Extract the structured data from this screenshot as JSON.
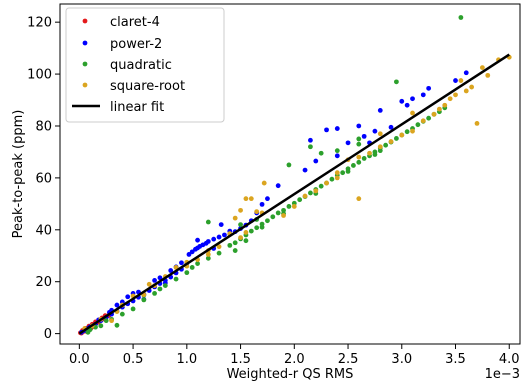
{
  "chart_data": {
    "type": "scatter",
    "xlabel": "Weighted-r QS RMS",
    "ylabel": "Peak-to-peak (ppm)",
    "x_offset_label": "1e−3",
    "x_scale": 0.001,
    "xlim": [
      -0.00018,
      0.0041
    ],
    "ylim": [
      -4,
      127
    ],
    "xticks": [
      0.0,
      0.0005,
      0.001,
      0.0015,
      0.002,
      0.0025,
      0.003,
      0.0035,
      0.004
    ],
    "xtick_labels": [
      "0.0",
      "0.5",
      "1.0",
      "1.5",
      "2.0",
      "2.5",
      "3.0",
      "3.5",
      "4.0"
    ],
    "yticks": [
      0,
      20,
      40,
      60,
      80,
      100,
      120
    ],
    "ytick_labels": [
      "0",
      "20",
      "40",
      "60",
      "80",
      "100",
      "120"
    ],
    "grid": false,
    "legend_position": "top-left",
    "series": [
      {
        "name": "claret-4",
        "color": "#e41a1c",
        "points": [
          [
            1e-05,
            0.3
          ],
          [
            2e-05,
            0.6
          ],
          [
            3e-05,
            0.8
          ],
          [
            4e-05,
            1.1
          ],
          [
            5e-05,
            1.3
          ],
          [
            6e-05,
            1.6
          ],
          [
            7e-05,
            1.8
          ],
          [
            8e-05,
            2.1
          ],
          [
            9e-05,
            2.3
          ],
          [
            0.0001,
            2.6
          ],
          [
            0.00011,
            2.8
          ],
          [
            0.00012,
            3.1
          ],
          [
            0.00013,
            3.3
          ],
          [
            0.00014,
            3.6
          ],
          [
            0.00015,
            3.9
          ],
          [
            0.00016,
            4.1
          ],
          [
            0.00017,
            4.4
          ],
          [
            0.00018,
            4.6
          ],
          [
            0.00019,
            4.9
          ],
          [
            0.0002,
            5.1
          ],
          [
            0.00021,
            5.4
          ],
          [
            0.00022,
            5.7
          ],
          [
            0.00023,
            5.9
          ],
          [
            0.00024,
            6.2
          ],
          [
            0.00025,
            6.4
          ],
          [
            0.00026,
            6.7
          ],
          [
            0.00027,
            6.9
          ],
          [
            0.00028,
            7.2
          ],
          [
            3e-05,
            1.2
          ],
          [
            6e-05,
            2.0
          ],
          [
            9e-05,
            2.9
          ],
          [
            0.00012,
            3.6
          ],
          [
            0.00015,
            4.5
          ],
          [
            0.00018,
            5.2
          ],
          [
            0.00021,
            6.0
          ],
          [
            0.00024,
            6.9
          ],
          [
            2e-05,
            0.2
          ],
          [
            5e-05,
            0.9
          ],
          [
            8e-05,
            1.6
          ],
          [
            0.00011,
            2.2
          ]
        ]
      },
      {
        "name": "power-2",
        "color": "#0000ff",
        "points": [
          [
            2e-05,
            0.5
          ],
          [
            5e-05,
            1.2
          ],
          [
            8e-05,
            2.0
          ],
          [
            0.0001,
            2.6
          ],
          [
            0.00012,
            3.0
          ],
          [
            0.00015,
            3.6
          ],
          [
            0.0002,
            5.0
          ],
          [
            0.00025,
            6.3
          ],
          [
            0.0003,
            7.5
          ],
          [
            0.00035,
            8.6
          ],
          [
            0.0004,
            10.2
          ],
          [
            0.00045,
            11.5
          ],
          [
            0.0005,
            12.6
          ],
          [
            0.00055,
            14.0
          ],
          [
            0.0006,
            15.2
          ],
          [
            0.00065,
            16.6
          ],
          [
            0.0007,
            18.0
          ],
          [
            0.00075,
            19.3
          ],
          [
            0.0008,
            20.5
          ],
          [
            0.00085,
            21.8
          ],
          [
            0.0009,
            23.4
          ],
          [
            0.00095,
            24.8
          ],
          [
            0.001,
            27.0
          ],
          [
            0.00102,
            30.5
          ],
          [
            0.00105,
            31.5
          ],
          [
            0.00108,
            32.5
          ],
          [
            0.0011,
            33.0
          ],
          [
            0.00112,
            33.6
          ],
          [
            0.00115,
            34.2
          ],
          [
            0.00118,
            34.8
          ],
          [
            0.0012,
            35.5
          ],
          [
            0.00125,
            36.4
          ],
          [
            0.0013,
            37.2
          ],
          [
            0.00135,
            38.0
          ],
          [
            0.0014,
            38.4
          ],
          [
            0.00145,
            39.3
          ],
          [
            0.0015,
            40.5
          ],
          [
            0.00155,
            41.8
          ],
          [
            0.0016,
            43.5
          ],
          [
            0.0005,
            15.5
          ],
          [
            0.00055,
            16.0
          ],
          [
            0.0006,
            13.2
          ],
          [
            0.00045,
            14.2
          ],
          [
            0.0004,
            12.2
          ],
          [
            0.00035,
            11.0
          ],
          [
            0.00125,
            32.8
          ],
          [
            0.00095,
            27.3
          ],
          [
            0.0009,
            25.7
          ],
          [
            0.00085,
            24.3
          ],
          [
            0.00175,
            52.0
          ],
          [
            0.00185,
            57.0
          ],
          [
            0.00215,
            74.5
          ],
          [
            0.0023,
            78.5
          ],
          [
            0.0024,
            79.0
          ],
          [
            0.0025,
            73.5
          ],
          [
            0.0027,
            73.5
          ],
          [
            0.0029,
            79.5
          ],
          [
            0.00305,
            88.0
          ],
          [
            0.0032,
            92.0
          ],
          [
            0.003,
            89.5
          ],
          [
            0.00325,
            94.5
          ],
          [
            0.0035,
            97.5
          ],
          [
            0.0036,
            100.5
          ],
          [
            0.0024,
            68.5
          ],
          [
            0.00132,
            42.0
          ],
          [
            0.0011,
            36.0
          ],
          [
            0.0007,
            20.5
          ],
          [
            0.00075,
            21.5
          ],
          [
            0.0008,
            19.5
          ],
          [
            0.0003,
            9.0
          ],
          [
            0.00028,
            8.2
          ],
          [
            0.00018,
            5.3
          ],
          [
            0.0014,
            39.5
          ],
          [
            0.00165,
            46.5
          ],
          [
            0.0017,
            49.8
          ],
          [
            0.00265,
            76.0
          ],
          [
            0.00275,
            78.0
          ],
          [
            0.0031,
            90.5
          ],
          [
            0.0028,
            86.0
          ],
          [
            0.0026,
            80.0
          ],
          [
            0.0021,
            63.0
          ],
          [
            0.0022,
            66.5
          ]
        ]
      },
      {
        "name": "quadratic",
        "color": "#2ca02c",
        "points": [
          [
            8e-05,
            0.5
          ],
          [
            0.0001,
            1.5
          ],
          [
            0.00015,
            2.5
          ],
          [
            0.0002,
            3.0
          ],
          [
            0.00025,
            5.0
          ],
          [
            0.0003,
            5.5
          ],
          [
            0.00035,
            3.2
          ],
          [
            0.0004,
            7.5
          ],
          [
            0.0005,
            9.5
          ],
          [
            0.0006,
            13.0
          ],
          [
            0.0007,
            15.5
          ],
          [
            0.00075,
            17.2
          ],
          [
            0.0008,
            18.5
          ],
          [
            0.0009,
            21.0
          ],
          [
            0.001,
            23.5
          ],
          [
            0.00105,
            25.5
          ],
          [
            0.0011,
            27.0
          ],
          [
            0.0012,
            29.0
          ],
          [
            0.0013,
            31.0
          ],
          [
            0.0014,
            34.0
          ],
          [
            0.00145,
            35.0
          ],
          [
            0.0015,
            36.5
          ],
          [
            0.00155,
            38.0
          ],
          [
            0.0016,
            39.5
          ],
          [
            0.00165,
            40.8
          ],
          [
            0.0017,
            42.2
          ],
          [
            0.00175,
            43.5
          ],
          [
            0.0018,
            45.0
          ],
          [
            0.00185,
            46.5
          ],
          [
            0.0019,
            47.5
          ],
          [
            0.00195,
            49.0
          ],
          [
            0.002,
            50.2
          ],
          [
            0.00205,
            51.6
          ],
          [
            0.0021,
            52.8
          ],
          [
            0.00215,
            54.2
          ],
          [
            0.0022,
            55.5
          ],
          [
            0.00225,
            56.8
          ],
          [
            0.0023,
            58.0
          ],
          [
            0.00235,
            59.5
          ],
          [
            0.0024,
            61.0
          ],
          [
            0.00245,
            62.0
          ],
          [
            0.0025,
            63.5
          ],
          [
            0.00255,
            64.8
          ],
          [
            0.0026,
            66.0
          ],
          [
            0.00265,
            67.5
          ],
          [
            0.0027,
            68.5
          ],
          [
            0.00275,
            70.0
          ],
          [
            0.0028,
            71.5
          ],
          [
            0.00285,
            72.6
          ],
          [
            0.0029,
            73.8
          ],
          [
            0.00295,
            75.2
          ],
          [
            0.003,
            76.5
          ],
          [
            0.00305,
            77.8
          ],
          [
            0.0031,
            79.0
          ],
          [
            0.00315,
            80.5
          ],
          [
            0.0032,
            81.8
          ],
          [
            0.00325,
            83.0
          ],
          [
            0.0033,
            84.5
          ],
          [
            0.00335,
            85.5
          ],
          [
            0.0034,
            87.0
          ],
          [
            0.0012,
            43.0
          ],
          [
            0.00195,
            65.0
          ],
          [
            0.00225,
            69.5
          ],
          [
            0.0024,
            70.5
          ],
          [
            0.0026,
            75.0
          ],
          [
            0.00275,
            69.0
          ],
          [
            0.00295,
            97.0
          ],
          [
            0.00355,
            121.8
          ],
          [
            0.00145,
            32.0
          ],
          [
            0.00155,
            35.8
          ],
          [
            0.00165,
            44.0
          ],
          [
            0.0015,
            42.0
          ],
          [
            0.0006,
            14.8
          ],
          [
            0.00215,
            72.0
          ],
          [
            0.0026,
            73.0
          ],
          [
            0.0017,
            41.0
          ],
          [
            0.0019,
            46.2
          ],
          [
            0.0022,
            54.0
          ],
          [
            0.0025,
            62.5
          ],
          [
            0.0028,
            70.5
          ]
        ]
      },
      {
        "name": "square-root",
        "color": "#dba520",
        "points": [
          [
            5e-05,
            2.0
          ],
          [
            0.00012,
            3.0
          ],
          [
            0.0002,
            5.5
          ],
          [
            0.0003,
            5.0
          ],
          [
            0.00035,
            8.5
          ],
          [
            0.0004,
            11.0
          ],
          [
            0.0005,
            14.5
          ],
          [
            0.0006,
            15.0
          ],
          [
            0.00065,
            19.0
          ],
          [
            0.0007,
            18.5
          ],
          [
            0.0008,
            22.0
          ],
          [
            0.0009,
            25.5
          ],
          [
            0.001,
            27.5
          ],
          [
            0.0011,
            28.5
          ],
          [
            0.0012,
            30.5
          ],
          [
            0.0013,
            33.5
          ],
          [
            0.0014,
            38.5
          ],
          [
            0.00145,
            44.5
          ],
          [
            0.0015,
            47.5
          ],
          [
            0.00155,
            52.0
          ],
          [
            0.0016,
            52.0
          ],
          [
            0.00165,
            47.0
          ],
          [
            0.0017,
            46.5
          ],
          [
            0.00172,
            58.0
          ],
          [
            0.002,
            49.0
          ],
          [
            0.0021,
            53.0
          ],
          [
            0.0022,
            55.0
          ],
          [
            0.0023,
            58.0
          ],
          [
            0.0024,
            62.0
          ],
          [
            0.0025,
            67.0
          ],
          [
            0.0026,
            52.0
          ],
          [
            0.0026,
            68.0
          ],
          [
            0.0027,
            69.5
          ],
          [
            0.0028,
            72.0
          ],
          [
            0.0029,
            74.0
          ],
          [
            0.003,
            76.5
          ],
          [
            0.0031,
            78.0
          ],
          [
            0.0032,
            82.0
          ],
          [
            0.0033,
            84.5
          ],
          [
            0.00335,
            86.5
          ],
          [
            0.0034,
            88.0
          ],
          [
            0.00345,
            90.5
          ],
          [
            0.0035,
            92.0
          ],
          [
            0.00355,
            97.5
          ],
          [
            0.0036,
            93.5
          ],
          [
            0.00365,
            95.0
          ],
          [
            0.0037,
            81.0
          ],
          [
            0.00375,
            102.5
          ],
          [
            0.0039,
            105.5
          ],
          [
            0.004,
            106.5
          ],
          [
            0.0038,
            99.5
          ],
          [
            0.0031,
            85.0
          ],
          [
            0.0028,
            77.0
          ],
          [
            0.0019,
            45.5
          ],
          [
            0.0024,
            60.0
          ],
          [
            0.00155,
            39.0
          ],
          [
            0.0015,
            37.0
          ],
          [
            0.001,
            26.0
          ],
          [
            0.0012,
            32.0
          ]
        ]
      }
    ],
    "fit_line": {
      "name": "linear fit",
      "color": "#000000",
      "points": [
        [
          0.0,
          0.0
        ],
        [
          0.004,
          107.5
        ]
      ]
    }
  }
}
